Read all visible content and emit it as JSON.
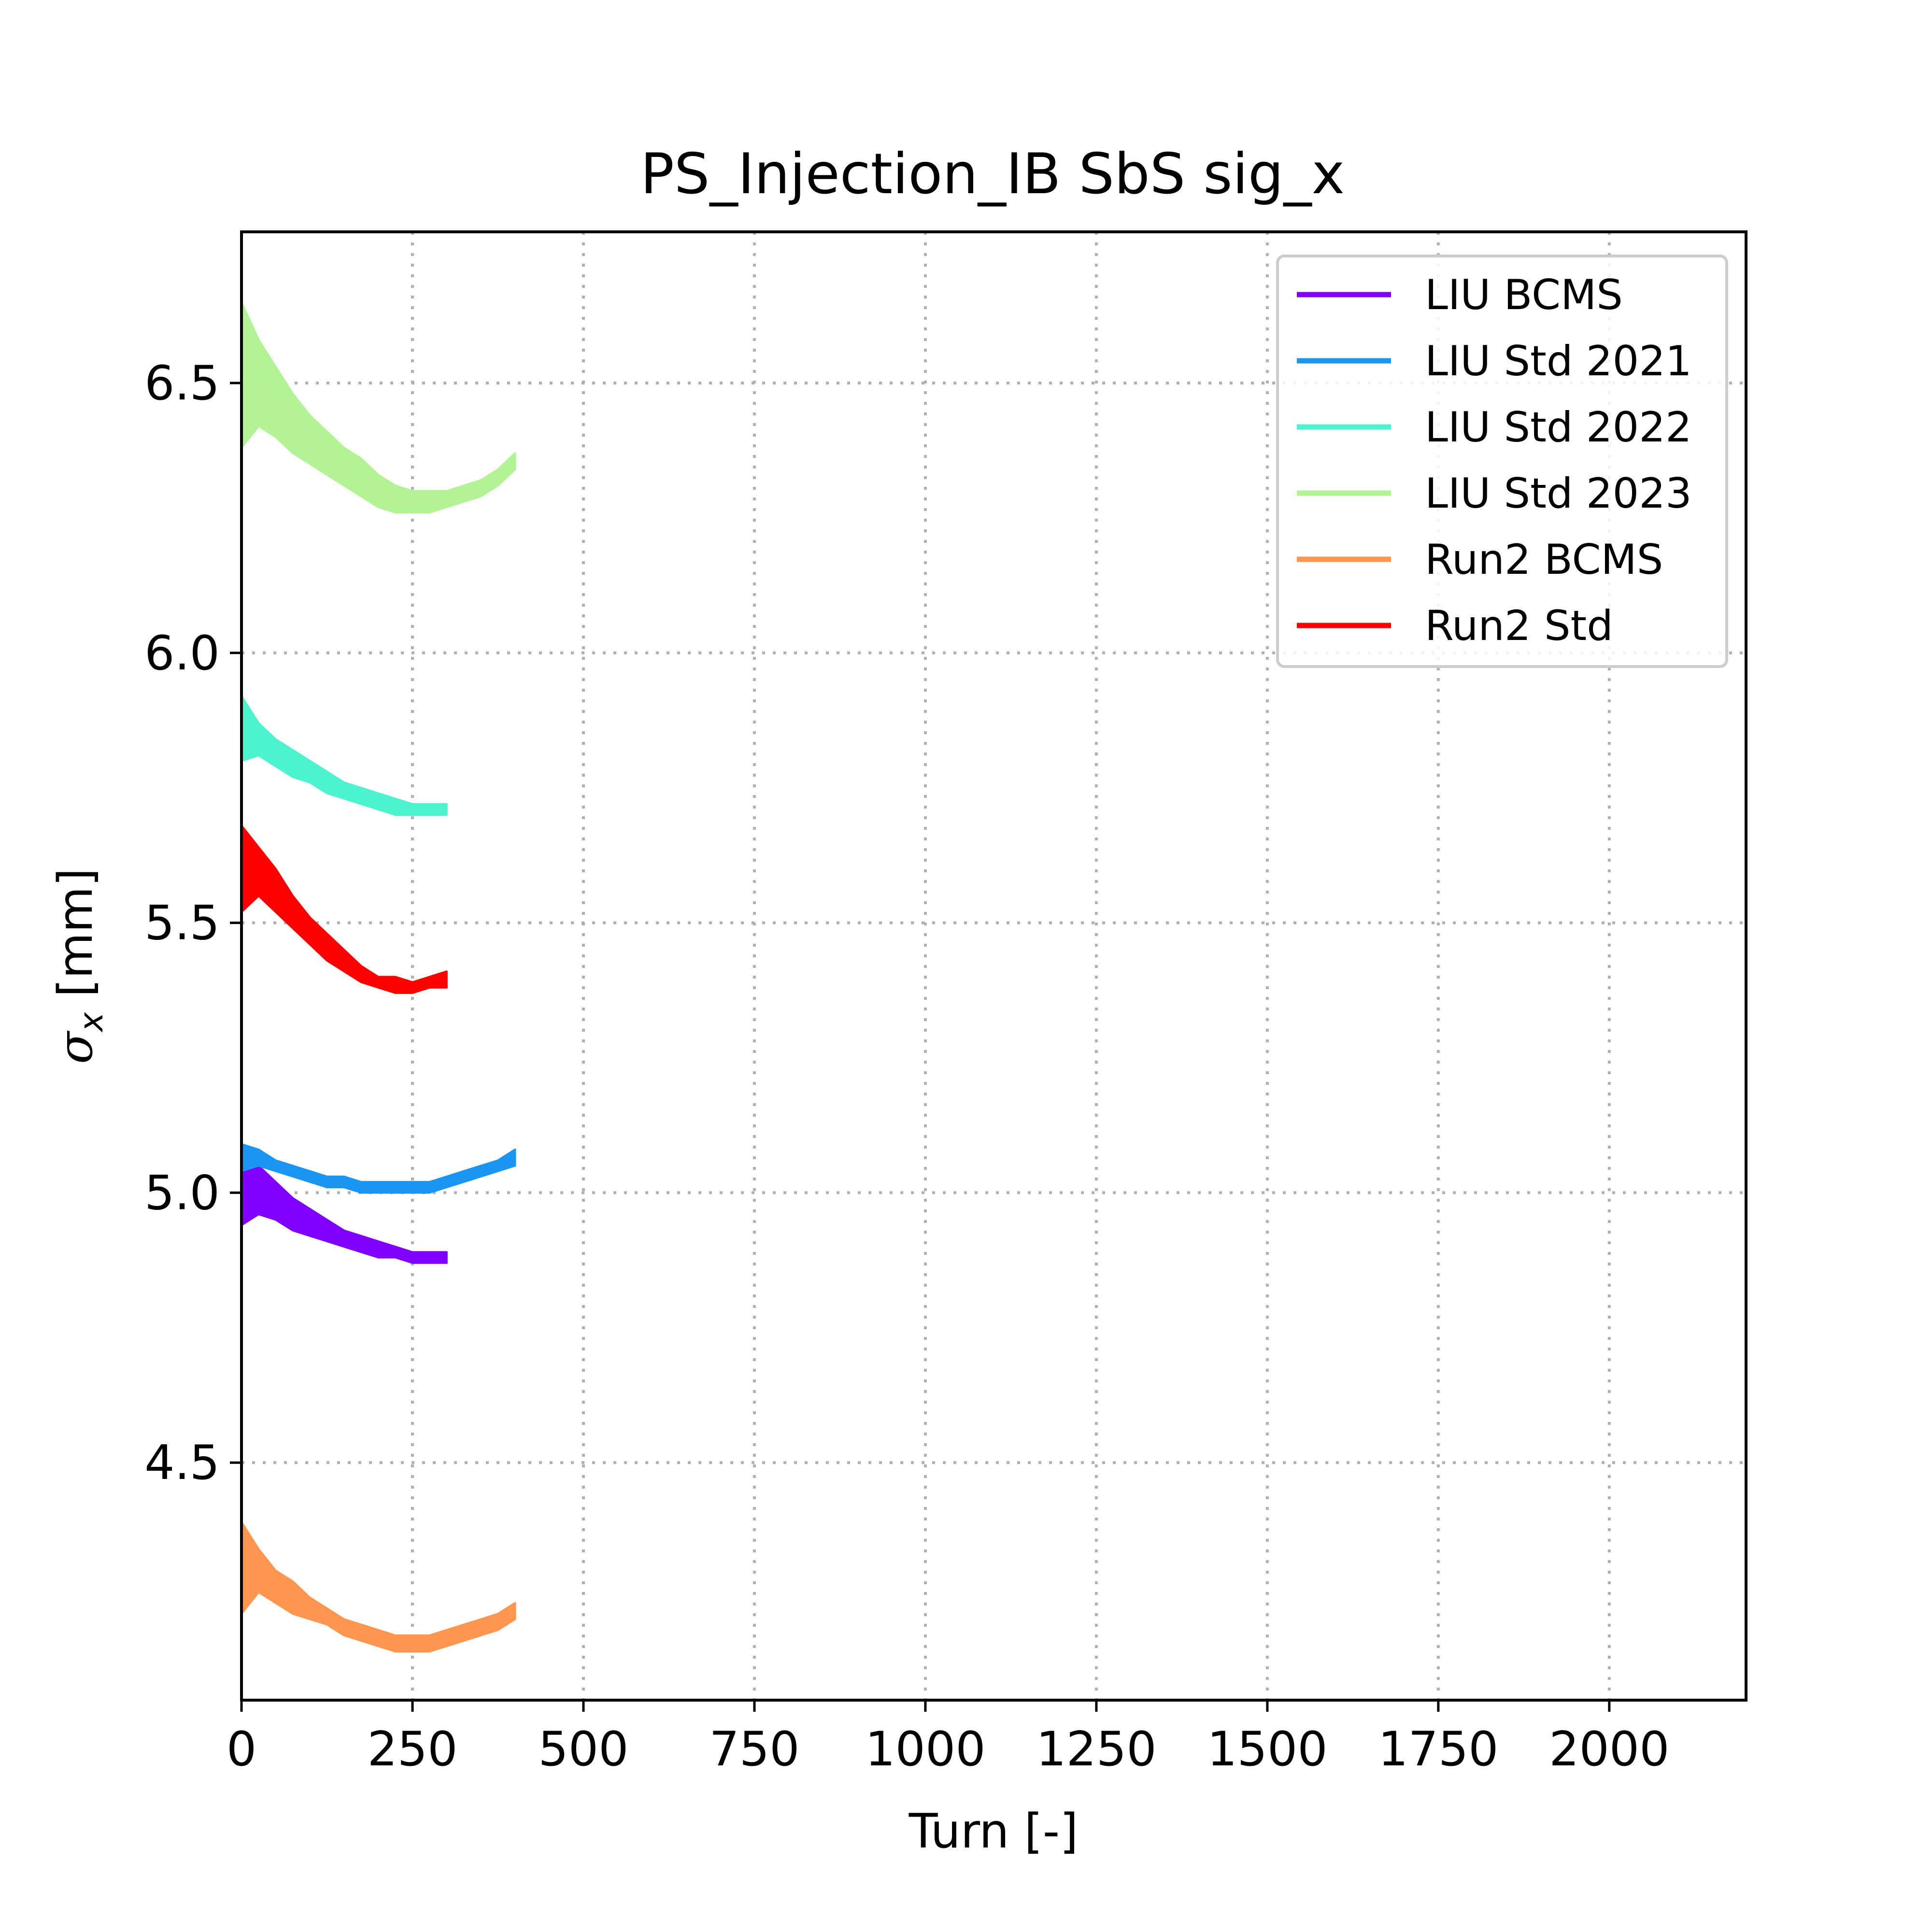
{
  "chart_data": {
    "type": "area",
    "title": "PS_Injection_IB SbS sig_x",
    "xlabel": "Turn [-]",
    "ylabel_symbol": "σ",
    "ylabel_subscript": "x",
    "ylabel_unit": " [mm]",
    "xlim": [
      0,
      2200
    ],
    "ylim": [
      4.06,
      6.78
    ],
    "xticks": [
      0,
      250,
      500,
      750,
      1000,
      1250,
      1500,
      1750,
      2000
    ],
    "xtick_labels": [
      "0",
      "250",
      "500",
      "750",
      "1000",
      "1250",
      "1500",
      "1750",
      "2000"
    ],
    "yticks": [
      4.5,
      5.0,
      5.5,
      6.0,
      6.5
    ],
    "ytick_labels": [
      "4.5",
      "5.0",
      "5.5",
      "6.0",
      "6.5"
    ],
    "grid": true,
    "legend_position": "top-right",
    "series": [
      {
        "name": "LIU BCMS",
        "color": "#8000ff",
        "x": [
          0,
          25,
          50,
          75,
          100,
          125,
          150,
          175,
          200,
          225,
          250,
          275,
          300
        ],
        "lower": [
          4.94,
          4.96,
          4.95,
          4.93,
          4.92,
          4.91,
          4.9,
          4.89,
          4.88,
          4.88,
          4.87,
          4.87,
          4.87
        ],
        "upper": [
          5.07,
          5.05,
          5.02,
          4.99,
          4.97,
          4.95,
          4.93,
          4.92,
          4.91,
          4.9,
          4.89,
          4.89,
          4.89
        ]
      },
      {
        "name": "LIU Std 2021",
        "color": "#1996f3",
        "x": [
          0,
          25,
          50,
          75,
          100,
          125,
          150,
          175,
          200,
          225,
          250,
          275,
          300,
          325,
          350,
          375,
          400
        ],
        "lower": [
          5.04,
          5.05,
          5.04,
          5.03,
          5.02,
          5.01,
          5.01,
          5.0,
          5.0,
          5.0,
          5.0,
          5.0,
          5.01,
          5.02,
          5.03,
          5.04,
          5.05
        ],
        "upper": [
          5.09,
          5.08,
          5.06,
          5.05,
          5.04,
          5.03,
          5.03,
          5.02,
          5.02,
          5.02,
          5.02,
          5.02,
          5.03,
          5.04,
          5.05,
          5.06,
          5.08
        ]
      },
      {
        "name": "LIU Std 2022",
        "color": "#4df3ce",
        "x": [
          0,
          25,
          50,
          75,
          100,
          125,
          150,
          175,
          200,
          225,
          250,
          275,
          300
        ],
        "lower": [
          5.8,
          5.81,
          5.79,
          5.77,
          5.76,
          5.74,
          5.73,
          5.72,
          5.71,
          5.7,
          5.7,
          5.7,
          5.7
        ],
        "upper": [
          5.92,
          5.87,
          5.84,
          5.82,
          5.8,
          5.78,
          5.76,
          5.75,
          5.74,
          5.73,
          5.72,
          5.72,
          5.72
        ]
      },
      {
        "name": "LIU Std 2023",
        "color": "#b2f396",
        "x": [
          0,
          25,
          50,
          75,
          100,
          125,
          150,
          175,
          200,
          225,
          250,
          275,
          300,
          325,
          350,
          375,
          400
        ],
        "lower": [
          6.38,
          6.42,
          6.4,
          6.37,
          6.35,
          6.33,
          6.31,
          6.29,
          6.27,
          6.26,
          6.26,
          6.26,
          6.27,
          6.28,
          6.29,
          6.31,
          6.34
        ],
        "upper": [
          6.65,
          6.58,
          6.53,
          6.48,
          6.44,
          6.41,
          6.38,
          6.36,
          6.33,
          6.31,
          6.3,
          6.3,
          6.3,
          6.31,
          6.32,
          6.34,
          6.37
        ]
      },
      {
        "name": "Run2 BCMS",
        "color": "#ff964f",
        "x": [
          0,
          25,
          50,
          75,
          100,
          125,
          150,
          175,
          200,
          225,
          250,
          275,
          300,
          325,
          350,
          375,
          400
        ],
        "lower": [
          4.22,
          4.26,
          4.24,
          4.22,
          4.21,
          4.2,
          4.18,
          4.17,
          4.16,
          4.15,
          4.15,
          4.15,
          4.16,
          4.17,
          4.18,
          4.19,
          4.21
        ],
        "upper": [
          4.39,
          4.34,
          4.3,
          4.28,
          4.25,
          4.23,
          4.21,
          4.2,
          4.19,
          4.18,
          4.18,
          4.18,
          4.19,
          4.2,
          4.21,
          4.22,
          4.24
        ]
      },
      {
        "name": "Run2 Std",
        "color": "#ff0000",
        "x": [
          0,
          25,
          50,
          75,
          100,
          125,
          150,
          175,
          200,
          225,
          250,
          275,
          300
        ],
        "lower": [
          5.52,
          5.55,
          5.52,
          5.49,
          5.46,
          5.43,
          5.41,
          5.39,
          5.38,
          5.37,
          5.37,
          5.38,
          5.38
        ],
        "upper": [
          5.68,
          5.64,
          5.6,
          5.55,
          5.51,
          5.48,
          5.45,
          5.42,
          5.4,
          5.4,
          5.39,
          5.4,
          5.41
        ]
      }
    ]
  }
}
